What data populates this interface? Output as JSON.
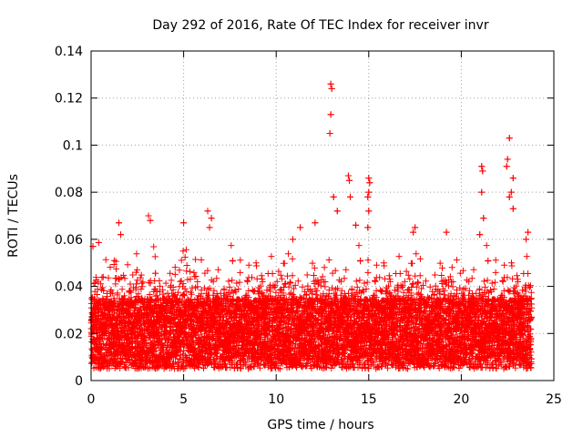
{
  "chart_data": {
    "type": "scatter",
    "title": "Day 292 of 2016, Rate Of TEC Index for receiver invr",
    "xlabel": "GPS time / hours",
    "ylabel": "ROTI / TECUs",
    "xlim": [
      0,
      25
    ],
    "ylim": [
      0,
      0.14
    ],
    "xticks": [
      0,
      5,
      10,
      15,
      20,
      25
    ],
    "xtick_labels": [
      "0",
      "5",
      "10",
      "15",
      "20",
      "25"
    ],
    "yticks": [
      0,
      0.02,
      0.04,
      0.06,
      0.08,
      0.1,
      0.12,
      0.14
    ],
    "ytick_labels": [
      "0",
      "0.02",
      "0.04",
      "0.06",
      "0.08",
      "0.1",
      "0.12",
      "0.14"
    ],
    "grid": true,
    "marker": "+",
    "color": "#ff0000",
    "series": [
      {
        "name": "ROTI",
        "baseline_band": [
          0.005,
          0.035
        ],
        "notable_points": [
          {
            "x": 0.1,
            "y": 0.057
          },
          {
            "x": 1.5,
            "y": 0.067
          },
          {
            "x": 1.6,
            "y": 0.062
          },
          {
            "x": 3.1,
            "y": 0.07
          },
          {
            "x": 3.2,
            "y": 0.068
          },
          {
            "x": 5.0,
            "y": 0.067
          },
          {
            "x": 6.3,
            "y": 0.072
          },
          {
            "x": 6.5,
            "y": 0.069
          },
          {
            "x": 6.4,
            "y": 0.065
          },
          {
            "x": 10.9,
            "y": 0.06
          },
          {
            "x": 11.3,
            "y": 0.065
          },
          {
            "x": 12.1,
            "y": 0.067
          },
          {
            "x": 12.95,
            "y": 0.126
          },
          {
            "x": 13.0,
            "y": 0.124
          },
          {
            "x": 12.95,
            "y": 0.113
          },
          {
            "x": 12.9,
            "y": 0.105
          },
          {
            "x": 13.1,
            "y": 0.078
          },
          {
            "x": 13.3,
            "y": 0.072
          },
          {
            "x": 13.9,
            "y": 0.087
          },
          {
            "x": 13.95,
            "y": 0.085
          },
          {
            "x": 14.0,
            "y": 0.078
          },
          {
            "x": 14.3,
            "y": 0.066
          },
          {
            "x": 15.0,
            "y": 0.086
          },
          {
            "x": 15.05,
            "y": 0.084
          },
          {
            "x": 15.0,
            "y": 0.08
          },
          {
            "x": 14.95,
            "y": 0.078
          },
          {
            "x": 15.0,
            "y": 0.072
          },
          {
            "x": 14.95,
            "y": 0.065
          },
          {
            "x": 17.5,
            "y": 0.065
          },
          {
            "x": 17.4,
            "y": 0.063
          },
          {
            "x": 19.2,
            "y": 0.063
          },
          {
            "x": 21.1,
            "y": 0.091
          },
          {
            "x": 21.15,
            "y": 0.089
          },
          {
            "x": 21.1,
            "y": 0.08
          },
          {
            "x": 21.2,
            "y": 0.069
          },
          {
            "x": 21.0,
            "y": 0.062
          },
          {
            "x": 22.6,
            "y": 0.103
          },
          {
            "x": 22.5,
            "y": 0.094
          },
          {
            "x": 22.45,
            "y": 0.091
          },
          {
            "x": 22.8,
            "y": 0.086
          },
          {
            "x": 22.7,
            "y": 0.08
          },
          {
            "x": 22.6,
            "y": 0.078
          },
          {
            "x": 22.8,
            "y": 0.073
          },
          {
            "x": 23.6,
            "y": 0.063
          },
          {
            "x": 23.5,
            "y": 0.06
          }
        ]
      }
    ]
  }
}
